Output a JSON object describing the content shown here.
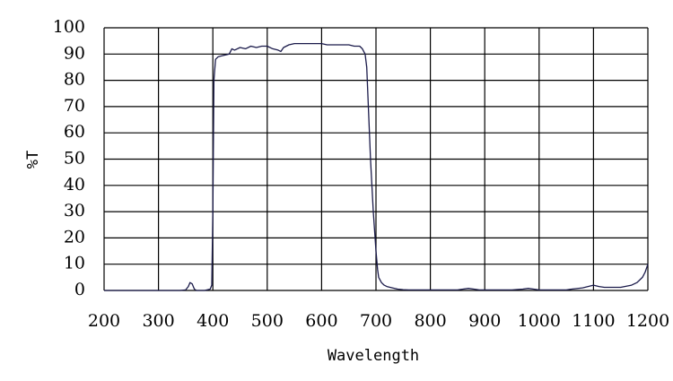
{
  "chart_data": {
    "type": "line",
    "title": "",
    "xlabel": "Wavelength",
    "ylabel": "%T",
    "xlim": [
      200,
      1200
    ],
    "ylim": [
      0,
      100
    ],
    "x_ticks": [
      200,
      300,
      400,
      500,
      600,
      700,
      800,
      900,
      1000,
      1100,
      1200
    ],
    "y_ticks": [
      0,
      10,
      20,
      30,
      40,
      50,
      60,
      70,
      80,
      90,
      100
    ],
    "grid": true,
    "legend": "none",
    "line_color": "#1a1a4a",
    "series": [
      {
        "x": [
          200,
          340,
          350,
          355,
          358,
          362,
          366,
          370,
          385,
          395,
          398,
          400,
          402,
          405,
          410,
          420,
          430,
          435,
          440,
          450,
          460,
          470,
          480,
          490,
          500,
          510,
          520,
          525,
          530,
          540,
          550,
          560,
          570,
          580,
          590,
          600,
          610,
          620,
          630,
          640,
          650,
          660,
          670,
          675,
          680,
          683,
          686,
          690,
          695,
          700,
          703,
          705,
          710,
          715,
          720,
          730,
          740,
          750,
          760,
          780,
          800,
          850,
          860,
          870,
          880,
          890,
          900,
          950,
          970,
          980,
          990,
          1000,
          1050,
          1060,
          1080,
          1090,
          1100,
          1110,
          1120,
          1150,
          1170,
          1180,
          1190,
          1195,
          1200
        ],
        "y": [
          0,
          0,
          0.2,
          1.5,
          3,
          2.5,
          0.5,
          0,
          0,
          0.5,
          2,
          30,
          80,
          88,
          89,
          89.5,
          90,
          92,
          91.5,
          92.5,
          92,
          93,
          92.5,
          93,
          93,
          92,
          91.5,
          91,
          92.5,
          93.5,
          94,
          94,
          94,
          94,
          94,
          94,
          93.5,
          93.5,
          93.5,
          93.5,
          93.5,
          93,
          93,
          92,
          90,
          85,
          70,
          50,
          30,
          15,
          8,
          5,
          3,
          2,
          1.5,
          1,
          0.5,
          0.3,
          0.2,
          0.2,
          0.2,
          0.2,
          0.5,
          0.8,
          0.5,
          0.2,
          0.2,
          0.2,
          0.5,
          0.8,
          0.5,
          0.2,
          0.2,
          0.5,
          1,
          1.5,
          2,
          1.5,
          1.2,
          1.2,
          2,
          3,
          5,
          7,
          10
        ]
      }
    ]
  }
}
